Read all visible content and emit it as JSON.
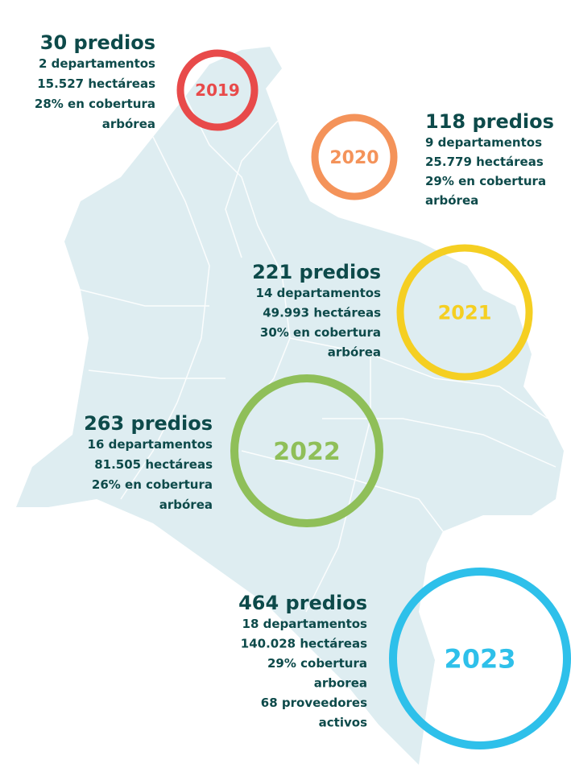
{
  "items": [
    {
      "year": "2019",
      "title": "30 predios",
      "lines": [
        "2 departamentos",
        "15.527 hectáreas",
        "28% en cobertura",
        "arbórea"
      ]
    },
    {
      "year": "2020",
      "title": "118 predios",
      "lines": [
        "9 departamentos",
        "25.779 hectáreas",
        "29% en cobertura",
        "arbórea"
      ]
    },
    {
      "year": "2021",
      "title": "221 predios",
      "lines": [
        "14 departamentos",
        "49.993 hectáreas",
        "30% en cobertura",
        "arbórea"
      ]
    },
    {
      "year": "2022",
      "title": "263 predios",
      "lines": [
        "16 departamentos",
        "81.505 hectáreas",
        "26% en cobertura",
        "arbórea"
      ]
    },
    {
      "year": "2023",
      "title": "464 predios",
      "lines": [
        "18 departamentos",
        "140.028 hectáreas",
        "29% cobertura",
        "arborea",
        "68 proveedores",
        "activos"
      ]
    }
  ]
}
